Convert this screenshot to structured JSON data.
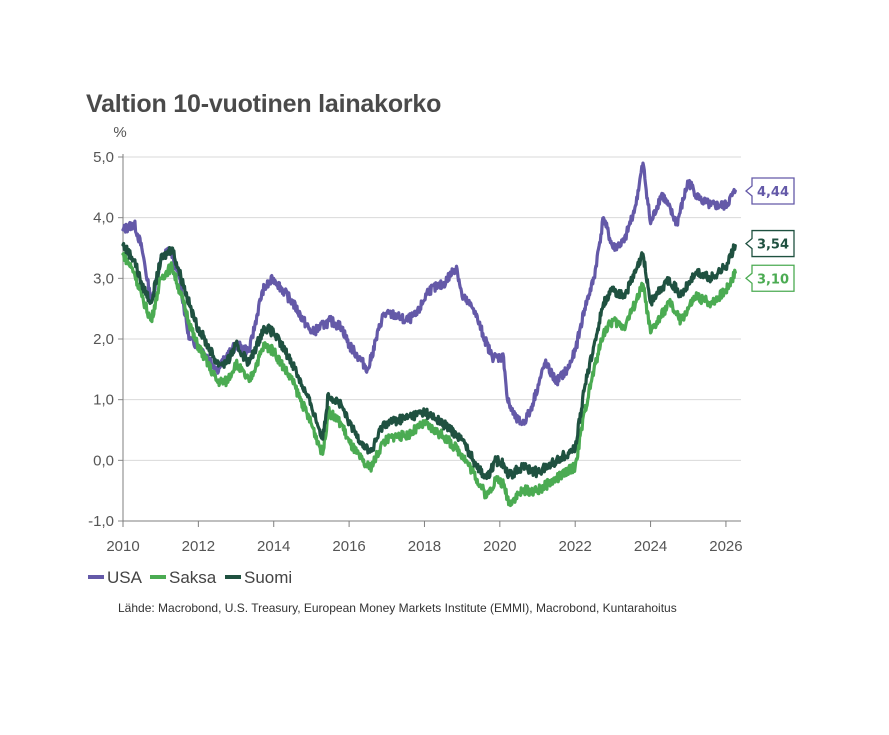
{
  "chart_data": {
    "type": "line",
    "title": "Valtion 10-vuotinen lainakorko",
    "ylabel": "%",
    "xlabel": "",
    "ylim": [
      -1.0,
      5.0
    ],
    "xlim": [
      2010.0,
      2026.4
    ],
    "y_ticks": [
      "-1,0",
      "0,0",
      "1,0",
      "2,0",
      "3,0",
      "4,0",
      "5,0"
    ],
    "y_tick_values": [
      -1,
      0,
      1,
      2,
      3,
      4,
      5
    ],
    "x_ticks": [
      "2010",
      "2012",
      "2014",
      "2016",
      "2018",
      "2020",
      "2022",
      "2024",
      "2026"
    ],
    "x_tick_values": [
      2010,
      2012,
      2014,
      2016,
      2018,
      2020,
      2022,
      2024,
      2026
    ],
    "grid": true,
    "legend_position": "bottom-left",
    "series": [
      {
        "name": "USA",
        "color": "#6459a8",
        "end_label": "4,44",
        "x": [
          2010.0,
          2010.3,
          2010.5,
          2010.75,
          2011.0,
          2011.25,
          2011.5,
          2011.75,
          2012.0,
          2012.5,
          2012.75,
          2013.0,
          2013.35,
          2013.7,
          2014.0,
          2014.5,
          2014.8,
          2015.0,
          2015.5,
          2015.8,
          2016.0,
          2016.5,
          2016.9,
          2017.2,
          2017.5,
          2017.8,
          2018.1,
          2018.5,
          2018.85,
          2019.0,
          2019.3,
          2019.6,
          2019.8,
          2020.1,
          2020.2,
          2020.4,
          2020.6,
          2020.8,
          2021.2,
          2021.5,
          2021.8,
          2022.0,
          2022.25,
          2022.5,
          2022.75,
          2023.0,
          2023.3,
          2023.6,
          2023.8,
          2024.0,
          2024.3,
          2024.7,
          2025.0,
          2025.3,
          2025.6,
          2026.0,
          2026.25
        ],
        "values": [
          3.8,
          3.9,
          3.5,
          2.6,
          3.3,
          3.5,
          3.0,
          2.0,
          1.9,
          1.5,
          1.7,
          1.9,
          1.8,
          2.8,
          3.0,
          2.6,
          2.3,
          2.1,
          2.3,
          2.2,
          1.9,
          1.5,
          2.4,
          2.4,
          2.3,
          2.4,
          2.8,
          2.9,
          3.2,
          2.7,
          2.5,
          2.0,
          1.7,
          1.7,
          1.0,
          0.7,
          0.6,
          0.8,
          1.6,
          1.3,
          1.5,
          1.8,
          2.5,
          3.0,
          4.0,
          3.5,
          3.6,
          4.2,
          4.9,
          3.9,
          4.4,
          3.9,
          4.6,
          4.3,
          4.2,
          4.2,
          4.44
        ]
      },
      {
        "name": "Saksa",
        "color": "#4bab52",
        "end_label": "3,10",
        "x": [
          2010.0,
          2010.3,
          2010.5,
          2010.75,
          2011.0,
          2011.3,
          2011.6,
          2011.9,
          2012.5,
          2012.75,
          2013.0,
          2013.35,
          2013.75,
          2014.0,
          2014.5,
          2015.0,
          2015.3,
          2015.45,
          2015.8,
          2016.0,
          2016.45,
          2016.6,
          2016.9,
          2017.2,
          2017.5,
          2018.0,
          2018.5,
          2019.0,
          2019.3,
          2019.65,
          2019.9,
          2020.1,
          2020.25,
          2020.6,
          2021.0,
          2021.5,
          2022.0,
          2022.25,
          2022.5,
          2022.75,
          2023.0,
          2023.3,
          2023.6,
          2023.8,
          2024.0,
          2024.5,
          2024.8,
          2025.2,
          2025.6,
          2026.0,
          2026.25
        ],
        "values": [
          3.4,
          3.1,
          2.7,
          2.3,
          3.0,
          3.2,
          2.6,
          2.0,
          1.3,
          1.3,
          1.6,
          1.3,
          1.9,
          1.8,
          1.3,
          0.6,
          0.1,
          0.8,
          0.6,
          0.3,
          -0.1,
          -0.1,
          0.3,
          0.4,
          0.4,
          0.6,
          0.4,
          0.1,
          -0.2,
          -0.6,
          -0.3,
          -0.4,
          -0.7,
          -0.5,
          -0.5,
          -0.3,
          -0.1,
          0.8,
          1.5,
          2.1,
          2.3,
          2.2,
          2.6,
          2.9,
          2.1,
          2.6,
          2.3,
          2.7,
          2.6,
          2.8,
          3.1
        ]
      },
      {
        "name": "Suomi",
        "color": "#1f5140",
        "end_label": "3,54",
        "x": [
          2010.0,
          2010.3,
          2010.5,
          2010.75,
          2011.0,
          2011.3,
          2011.6,
          2011.9,
          2012.5,
          2012.75,
          2013.0,
          2013.35,
          2013.75,
          2014.0,
          2014.5,
          2015.0,
          2015.3,
          2015.45,
          2015.8,
          2016.0,
          2016.45,
          2016.6,
          2016.9,
          2017.2,
          2017.5,
          2018.0,
          2018.5,
          2019.0,
          2019.3,
          2019.65,
          2019.9,
          2020.1,
          2020.25,
          2020.6,
          2021.0,
          2021.5,
          2022.0,
          2022.25,
          2022.5,
          2022.75,
          2023.0,
          2023.3,
          2023.6,
          2023.8,
          2024.0,
          2024.5,
          2024.8,
          2025.2,
          2025.6,
          2026.0,
          2026.25
        ],
        "values": [
          3.55,
          3.3,
          2.9,
          2.6,
          3.3,
          3.5,
          2.9,
          2.3,
          1.6,
          1.6,
          1.9,
          1.6,
          2.2,
          2.1,
          1.6,
          0.9,
          0.35,
          1.1,
          0.9,
          0.6,
          0.2,
          0.15,
          0.6,
          0.65,
          0.7,
          0.8,
          0.6,
          0.35,
          0.0,
          -0.3,
          0.0,
          -0.05,
          -0.25,
          -0.1,
          -0.2,
          0.0,
          0.2,
          1.2,
          1.9,
          2.6,
          2.8,
          2.7,
          3.1,
          3.4,
          2.6,
          3.0,
          2.7,
          3.1,
          3.0,
          3.2,
          3.54
        ]
      }
    ]
  },
  "source_text": "Lähde: Macrobond, U.S. Treasury, European Money Markets Institute (EMMI), Macrobond, Kuntarahoitus"
}
